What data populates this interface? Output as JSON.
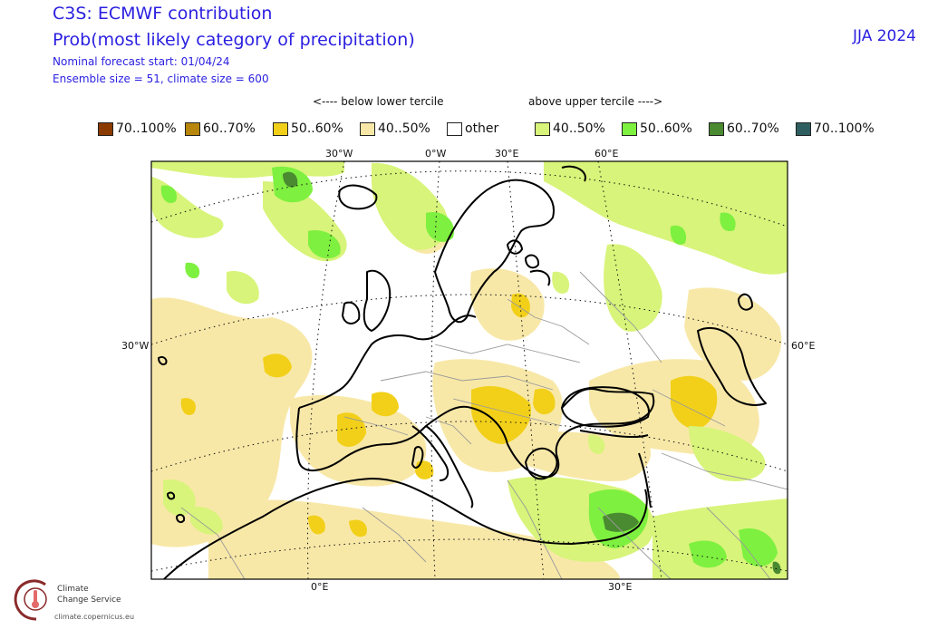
{
  "header": {
    "title": "C3S: ECMWF contribution",
    "subtitle": "Prob(most likely category of precipitation)",
    "forecast_start": "Nominal forecast start: 01/04/24",
    "ensemble": "Ensemble size = 51, climate size = 600",
    "season": "JJA 2024"
  },
  "tercile_labels": {
    "below": "<---- below lower tercile",
    "above": "above upper tercile ---->"
  },
  "legend": [
    {
      "label": "70..100%",
      "color": "#8b3a00"
    },
    {
      "label": "60..70%",
      "color": "#b8860b"
    },
    {
      "label": "50..60%",
      "color": "#f2d01a"
    },
    {
      "label": "40..50%",
      "color": "#f8e8a8"
    },
    {
      "label": "other",
      "color": "#ffffff"
    },
    {
      "label": "40..50%",
      "color": "#d8f47a"
    },
    {
      "label": "50..60%",
      "color": "#7ef040"
    },
    {
      "label": "60..70%",
      "color": "#4a8a30"
    },
    {
      "label": "70..100%",
      "color": "#2e5e60"
    }
  ],
  "axis_labels": {
    "top": [
      "30°W",
      "0°W",
      "30°E",
      "60°E"
    ],
    "left": "30°W",
    "right": "60°E",
    "bottom": [
      "0°E",
      "30°E"
    ]
  },
  "logo": {
    "line1": "Climate",
    "line2": "Change Service",
    "url": "climate.copernicus.eu"
  }
}
